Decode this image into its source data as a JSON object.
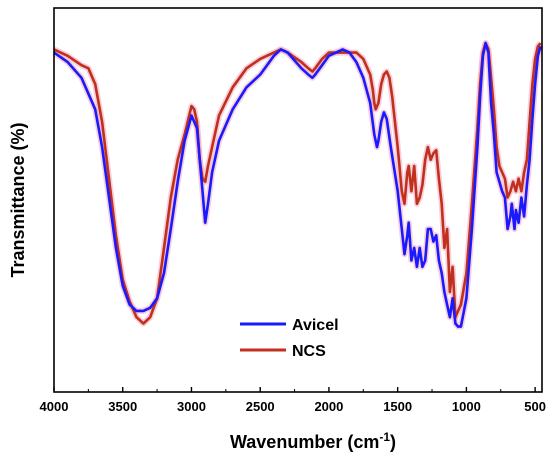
{
  "chart_data": {
    "type": "line",
    "xlabel": "Wavenumber (cm",
    "xlabel_sup": "-1",
    "xlabel_end": ")",
    "ylabel": "Transmittance (%)",
    "xlim": [
      4000,
      450
    ],
    "x_direction": "decreasing",
    "ylim": [
      0,
      100
    ],
    "y_ticks_shown": false,
    "x_ticks": [
      4000,
      3500,
      3000,
      2500,
      2000,
      1500,
      1000,
      500
    ],
    "grid": false,
    "legend_position": "bottom-center",
    "series": [
      {
        "name": "Avicel",
        "color": "#1a1aff",
        "x": [
          4000,
          3900,
          3800,
          3700,
          3650,
          3600,
          3550,
          3500,
          3450,
          3400,
          3350,
          3300,
          3250,
          3200,
          3150,
          3100,
          3050,
          3000,
          2960,
          2920,
          2900,
          2880,
          2850,
          2800,
          2700,
          2600,
          2500,
          2400,
          2350,
          2300,
          2200,
          2150,
          2120,
          2100,
          2050,
          2000,
          1900,
          1850,
          1800,
          1750,
          1700,
          1670,
          1650,
          1640,
          1620,
          1600,
          1580,
          1550,
          1500,
          1470,
          1450,
          1430,
          1420,
          1400,
          1380,
          1360,
          1340,
          1320,
          1300,
          1280,
          1260,
          1240,
          1220,
          1200,
          1180,
          1160,
          1140,
          1120,
          1100,
          1080,
          1060,
          1040,
          1000,
          960,
          920,
          900,
          880,
          860,
          840,
          820,
          800,
          780,
          760,
          740,
          720,
          700,
          680,
          670,
          660,
          650,
          640,
          620,
          600,
          580,
          560,
          540,
          520,
          500,
          480,
          460
        ],
        "y": [
          96,
          93,
          88,
          78,
          66,
          50,
          34,
          22,
          16,
          14,
          14,
          15,
          18,
          26,
          40,
          55,
          68,
          76,
          72,
          52,
          42,
          48,
          58,
          68,
          78,
          85,
          89,
          95,
          97,
          96,
          91,
          89,
          88,
          89,
          92,
          95,
          97,
          96,
          93,
          88,
          80,
          70,
          66,
          68,
          74,
          77,
          75,
          66,
          52,
          40,
          32,
          38,
          42,
          30,
          34,
          28,
          34,
          28,
          30,
          40,
          40,
          36,
          38,
          30,
          26,
          20,
          16,
          12,
          18,
          10,
          9,
          9,
          18,
          40,
          66,
          82,
          95,
          99,
          96,
          80,
          70,
          58,
          55,
          52,
          50,
          40,
          44,
          48,
          44,
          40,
          46,
          42,
          50,
          44,
          54,
          62,
          75,
          86,
          95,
          98
        ]
      },
      {
        "name": "NCS",
        "color": "#c0301c",
        "x": [
          4000,
          3900,
          3800,
          3750,
          3700,
          3650,
          3600,
          3550,
          3500,
          3450,
          3400,
          3350,
          3300,
          3250,
          3200,
          3150,
          3100,
          3050,
          3000,
          2980,
          2960,
          2940,
          2920,
          2900,
          2880,
          2850,
          2800,
          2700,
          2600,
          2500,
          2400,
          2350,
          2300,
          2200,
          2150,
          2120,
          2100,
          2050,
          2000,
          1900,
          1800,
          1750,
          1700,
          1680,
          1670,
          1660,
          1640,
          1620,
          1600,
          1580,
          1560,
          1540,
          1500,
          1470,
          1450,
          1430,
          1420,
          1400,
          1380,
          1360,
          1340,
          1320,
          1300,
          1280,
          1260,
          1240,
          1220,
          1200,
          1180,
          1160,
          1140,
          1120,
          1100,
          1080,
          1060,
          1040,
          1000,
          960,
          920,
          900,
          880,
          860,
          840,
          820,
          800,
          780,
          760,
          740,
          720,
          700,
          680,
          660,
          640,
          620,
          600,
          580,
          560,
          540,
          520,
          500,
          480,
          460
        ],
        "y": [
          97,
          95,
          92,
          91,
          86,
          74,
          56,
          38,
          24,
          17,
          12,
          10,
          12,
          18,
          34,
          50,
          62,
          70,
          79,
          78,
          74,
          62,
          56,
          55,
          60,
          66,
          76,
          85,
          91,
          94,
          96,
          97,
          96,
          93,
          91,
          90,
          91,
          94,
          96,
          96,
          96,
          94,
          89,
          84,
          80,
          78,
          80,
          86,
          89,
          90,
          88,
          82,
          66,
          52,
          48,
          58,
          60,
          52,
          60,
          48,
          50,
          54,
          62,
          66,
          62,
          64,
          65,
          56,
          48,
          34,
          40,
          20,
          28,
          12,
          14,
          16,
          26,
          48,
          72,
          86,
          96,
          99,
          97,
          88,
          78,
          66,
          60,
          58,
          56,
          50,
          52,
          55,
          52,
          56,
          52,
          58,
          62,
          74,
          86,
          94,
          98,
          99
        ]
      }
    ]
  }
}
